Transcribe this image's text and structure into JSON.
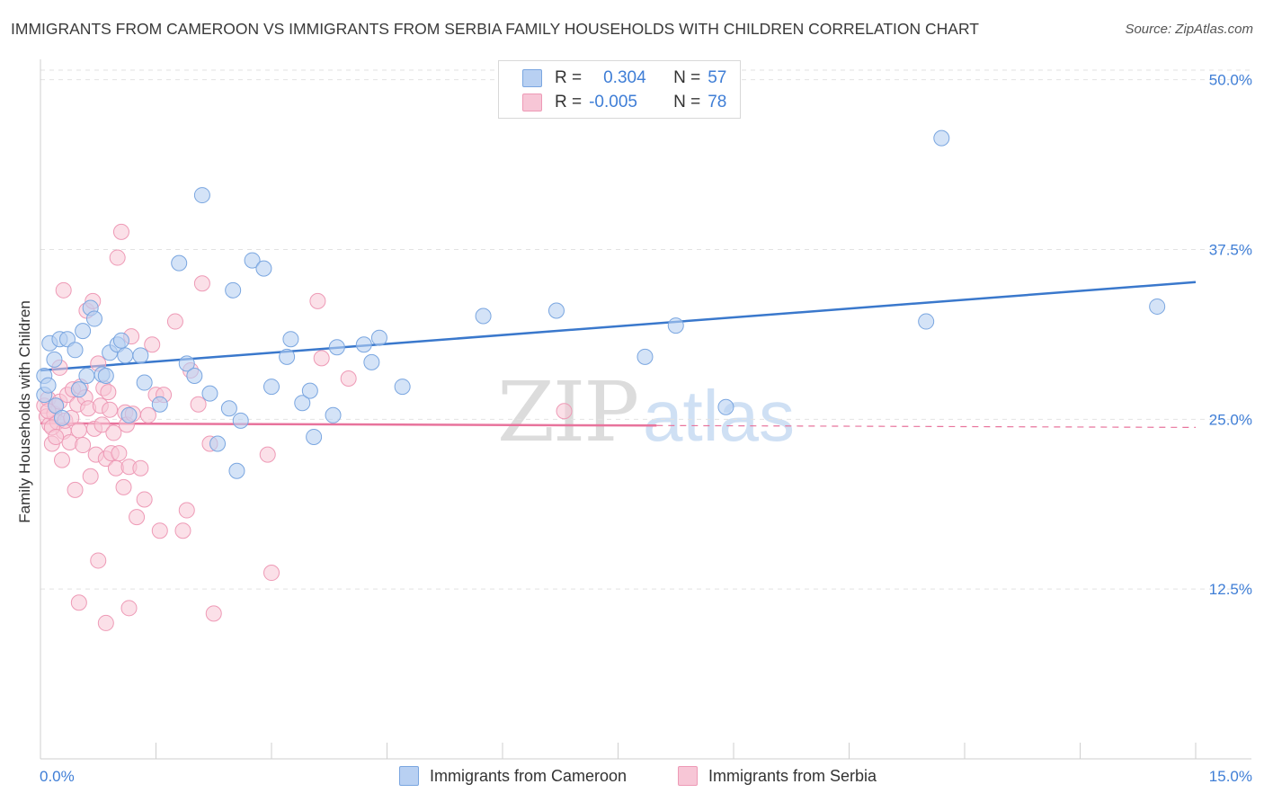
{
  "title": "IMMIGRANTS FROM CAMEROON VS IMMIGRANTS FROM SERBIA FAMILY HOUSEHOLDS WITH CHILDREN CORRELATION CHART",
  "source": "Source: ZipAtlas.com",
  "watermark": {
    "zip": "ZIP",
    "atlas": "atlas"
  },
  "legend": {
    "r_label": "R =",
    "n_label": "N =",
    "cameroon": {
      "r": "0.304",
      "n": "57"
    },
    "serbia": {
      "r": "-0.005",
      "n": "78"
    }
  },
  "colors": {
    "cameroon_fill": "#b8d0f2",
    "cameroon_stroke": "#7aa6e0",
    "cameroon_line": "#3a78cc",
    "serbia_fill": "#f7c6d6",
    "serbia_stroke": "#ee9ab6",
    "serbia_line": "#e8739c",
    "axis_text": "#3f7ed6"
  },
  "chart_data": {
    "type": "scatter",
    "xlabel": "",
    "ylabel": "Family Households with Children",
    "xlim": [
      0,
      15
    ],
    "ylim": [
      0,
      51.5
    ],
    "x_tick_labels": [
      "0.0%",
      "15.0%"
    ],
    "y_ticks": [
      12.5,
      25.0,
      37.5,
      50.0
    ],
    "y_tick_labels": [
      "12.5%",
      "25.0%",
      "37.5%",
      "50.0%"
    ],
    "grid": true,
    "series": [
      {
        "name": "Immigrants from Cameroon",
        "trend": {
          "x": [
            0,
            15
          ],
          "y": [
            28.6,
            35.1
          ],
          "solid_to": 15
        },
        "points": [
          [
            0.05,
            28.2
          ],
          [
            0.12,
            30.6
          ],
          [
            0.18,
            29.4
          ],
          [
            0.25,
            30.9
          ],
          [
            0.35,
            30.9
          ],
          [
            0.45,
            30.1
          ],
          [
            0.5,
            27.2
          ],
          [
            0.55,
            31.5
          ],
          [
            0.6,
            28.2
          ],
          [
            0.65,
            33.2
          ],
          [
            0.7,
            32.4
          ],
          [
            0.8,
            28.3
          ],
          [
            0.85,
            28.2
          ],
          [
            0.9,
            29.9
          ],
          [
            1.0,
            30.5
          ],
          [
            1.05,
            30.8
          ],
          [
            1.1,
            29.7
          ],
          [
            1.15,
            25.3
          ],
          [
            1.3,
            29.7
          ],
          [
            1.35,
            27.7
          ],
          [
            1.55,
            26.1
          ],
          [
            1.8,
            36.5
          ],
          [
            1.9,
            29.1
          ],
          [
            2.0,
            28.2
          ],
          [
            2.1,
            41.5
          ],
          [
            2.2,
            26.9
          ],
          [
            2.3,
            23.2
          ],
          [
            2.45,
            25.8
          ],
          [
            2.5,
            34.5
          ],
          [
            2.55,
            21.2
          ],
          [
            2.6,
            24.9
          ],
          [
            2.75,
            36.7
          ],
          [
            2.9,
            36.1
          ],
          [
            3.0,
            27.4
          ],
          [
            3.2,
            29.6
          ],
          [
            3.25,
            30.9
          ],
          [
            3.4,
            26.2
          ],
          [
            3.5,
            27.1
          ],
          [
            3.55,
            23.7
          ],
          [
            3.8,
            25.3
          ],
          [
            3.85,
            30.3
          ],
          [
            4.2,
            30.5
          ],
          [
            4.3,
            29.2
          ],
          [
            4.4,
            31.0
          ],
          [
            4.7,
            27.4
          ],
          [
            5.75,
            32.6
          ],
          [
            6.7,
            33.0
          ],
          [
            7.85,
            29.6
          ],
          [
            8.25,
            31.9
          ],
          [
            8.9,
            25.9
          ],
          [
            11.5,
            32.2
          ],
          [
            11.7,
            45.7
          ],
          [
            14.5,
            33.3
          ],
          [
            0.05,
            26.8
          ],
          [
            0.1,
            27.5
          ],
          [
            0.2,
            26.0
          ],
          [
            0.28,
            25.1
          ]
        ]
      },
      {
        "name": "Immigrants from Serbia",
        "trend": {
          "x": [
            0,
            15
          ],
          "y": [
            24.7,
            24.4
          ],
          "solid_to": 8
        },
        "points": [
          [
            0.05,
            26.0
          ],
          [
            0.08,
            25.2
          ],
          [
            0.1,
            26.5
          ],
          [
            0.12,
            24.6
          ],
          [
            0.15,
            23.2
          ],
          [
            0.18,
            25.4
          ],
          [
            0.2,
            26.0
          ],
          [
            0.22,
            24.8
          ],
          [
            0.25,
            26.3
          ],
          [
            0.28,
            22.0
          ],
          [
            0.3,
            24.1
          ],
          [
            0.32,
            24.9
          ],
          [
            0.35,
            26.8
          ],
          [
            0.38,
            23.3
          ],
          [
            0.4,
            25.1
          ],
          [
            0.42,
            27.2
          ],
          [
            0.45,
            19.8
          ],
          [
            0.48,
            26.1
          ],
          [
            0.5,
            24.2
          ],
          [
            0.52,
            27.4
          ],
          [
            0.55,
            23.1
          ],
          [
            0.58,
            26.6
          ],
          [
            0.6,
            33.0
          ],
          [
            0.62,
            25.8
          ],
          [
            0.65,
            20.8
          ],
          [
            0.68,
            33.7
          ],
          [
            0.7,
            24.3
          ],
          [
            0.72,
            22.4
          ],
          [
            0.75,
            29.1
          ],
          [
            0.78,
            26.0
          ],
          [
            0.8,
            24.6
          ],
          [
            0.82,
            27.3
          ],
          [
            0.85,
            22.1
          ],
          [
            0.88,
            27.0
          ],
          [
            0.9,
            25.7
          ],
          [
            0.92,
            22.5
          ],
          [
            0.95,
            24.0
          ],
          [
            0.98,
            21.4
          ],
          [
            1.0,
            36.9
          ],
          [
            1.02,
            22.5
          ],
          [
            1.05,
            38.8
          ],
          [
            1.08,
            20.0
          ],
          [
            1.1,
            25.5
          ],
          [
            1.12,
            24.6
          ],
          [
            1.15,
            21.5
          ],
          [
            1.18,
            31.1
          ],
          [
            1.2,
            25.4
          ],
          [
            1.25,
            17.8
          ],
          [
            1.3,
            21.4
          ],
          [
            1.35,
            19.1
          ],
          [
            1.4,
            25.3
          ],
          [
            1.45,
            30.5
          ],
          [
            1.5,
            26.8
          ],
          [
            1.55,
            16.8
          ],
          [
            1.6,
            26.8
          ],
          [
            1.75,
            32.2
          ],
          [
            1.85,
            16.8
          ],
          [
            1.9,
            18.3
          ],
          [
            1.95,
            28.6
          ],
          [
            2.05,
            26.1
          ],
          [
            2.1,
            35.0
          ],
          [
            2.2,
            23.2
          ],
          [
            2.25,
            10.7
          ],
          [
            2.95,
            22.4
          ],
          [
            3.0,
            13.7
          ],
          [
            3.6,
            33.7
          ],
          [
            3.65,
            29.5
          ],
          [
            4.0,
            28.0
          ],
          [
            6.8,
            25.6
          ],
          [
            0.3,
            34.5
          ],
          [
            0.5,
            11.5
          ],
          [
            0.85,
            10.0
          ],
          [
            1.15,
            11.1
          ],
          [
            0.75,
            14.6
          ],
          [
            0.1,
            25.6
          ],
          [
            0.15,
            24.4
          ],
          [
            0.2,
            23.7
          ],
          [
            0.25,
            28.8
          ]
        ]
      }
    ]
  }
}
